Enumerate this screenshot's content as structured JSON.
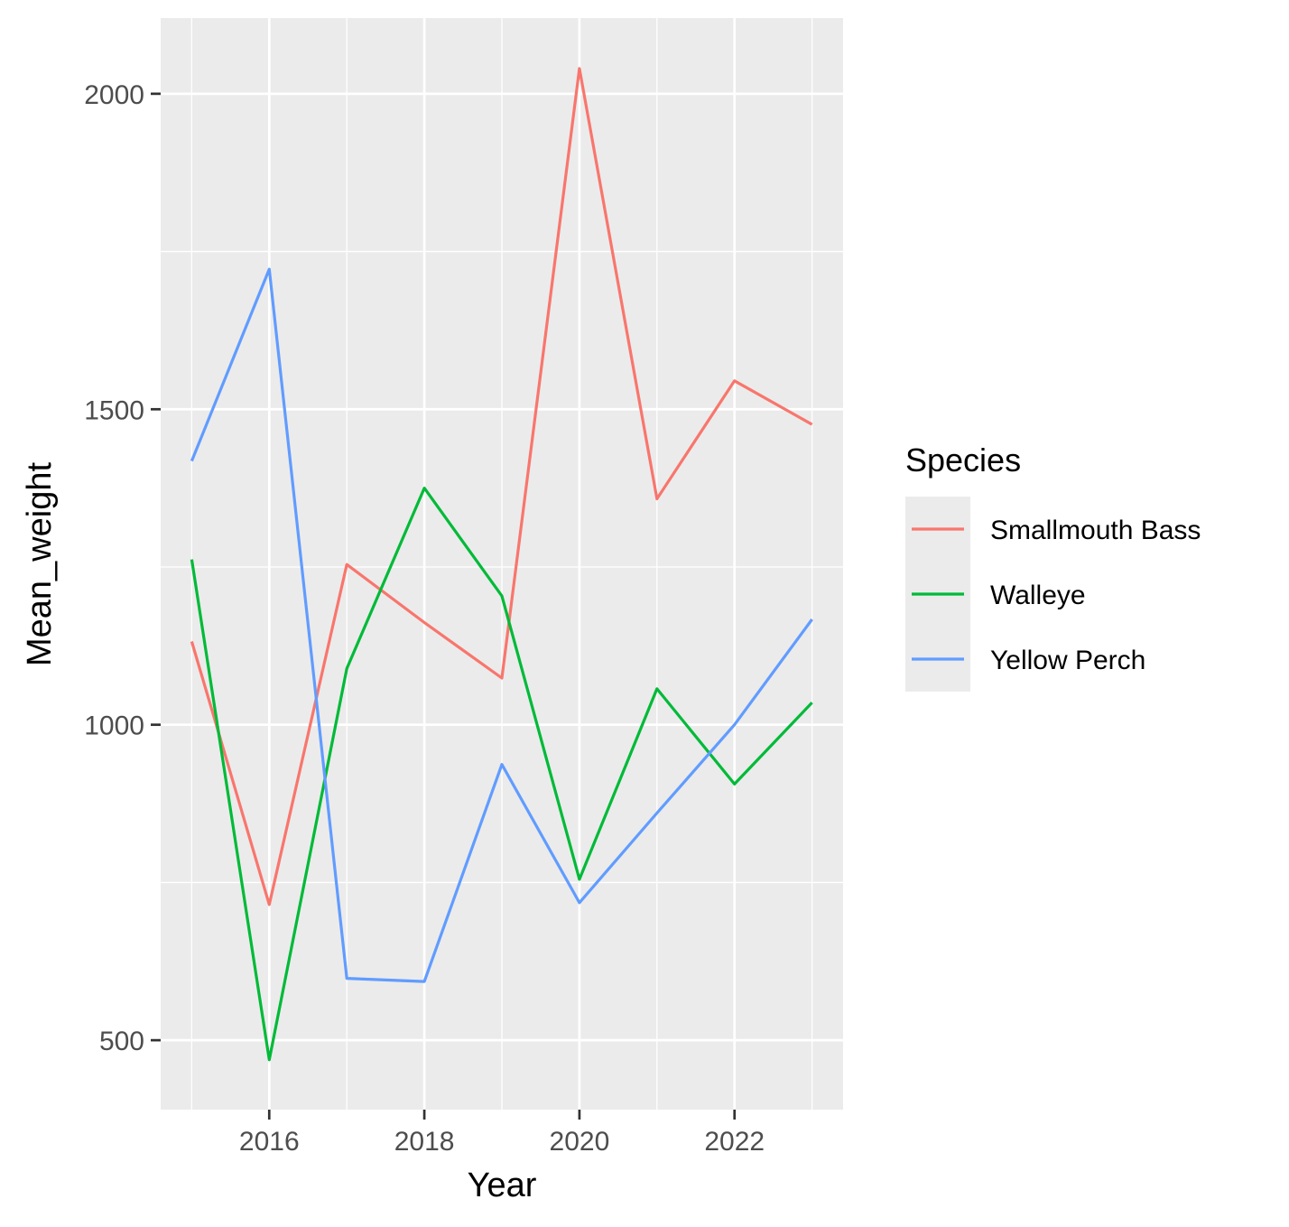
{
  "chart_data": {
    "type": "line",
    "xlabel": "Year",
    "ylabel": "Mean_weight",
    "xlim": [
      2014.6,
      2023.4
    ],
    "ylim": [
      390,
      2120
    ],
    "x_ticks": [
      2016,
      2018,
      2020,
      2022
    ],
    "x_tick_labels": [
      "2016",
      "2018",
      "2020",
      "2022"
    ],
    "y_ticks": [
      500,
      1000,
      1500,
      2000
    ],
    "y_tick_labels": [
      "500",
      "1000",
      "1500",
      "2000"
    ],
    "grid": true,
    "legend": {
      "title": "Species",
      "placement": "right"
    },
    "x": [
      2015,
      2016,
      2017,
      2018,
      2019,
      2020,
      2021,
      2022,
      2023
    ],
    "series": [
      {
        "name": "Smallmouth Bass",
        "color": "#F8766D",
        "values": [
          1132,
          715,
          1254,
          1162,
          1074,
          2040,
          1358,
          1545,
          1476
        ]
      },
      {
        "name": "Walleye",
        "color": "#00BA38",
        "values": [
          1262,
          469,
          1089,
          1375,
          1204,
          755,
          1057,
          906,
          1035
        ]
      },
      {
        "name": "Yellow Perch",
        "color": "#619CFF",
        "values": [
          1418,
          1722,
          598,
          593,
          937,
          718,
          860,
          1000,
          1167
        ]
      }
    ]
  }
}
